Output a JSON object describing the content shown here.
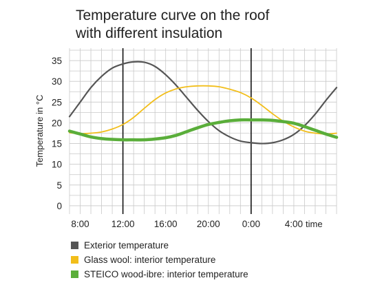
{
  "chart_data": {
    "type": "line",
    "title_lines": [
      "Temperature curve on the roof",
      "with different insulation"
    ],
    "xlabel": "time",
    "ylabel": "Temperature in °C",
    "x_tick_labels": [
      {
        "hour": 8,
        "label": "8:00"
      },
      {
        "hour": 12,
        "label": "12:00"
      },
      {
        "hour": 16,
        "label": "16:00"
      },
      {
        "hour": 20,
        "label": "20:00"
      },
      {
        "hour": 24,
        "label": "0:00"
      },
      {
        "hour": 28,
        "label": "4:00"
      }
    ],
    "xlim": [
      7,
      32
    ],
    "y_ticks": [
      0,
      5,
      10,
      15,
      20,
      25,
      30,
      35
    ],
    "ylim": [
      -2,
      38
    ],
    "grid": true,
    "grid_x_step_hours": 1,
    "grid_y_step": 2.5,
    "marker_lines_hours": [
      12,
      24
    ],
    "legend_position": "bottom",
    "series": [
      {
        "name": "Exterior temperature",
        "color": "#555555",
        "x": [
          7,
          8,
          9,
          10,
          11,
          12,
          13,
          14,
          15,
          16,
          17,
          18,
          19,
          20,
          21,
          22,
          23,
          24,
          25,
          26,
          27,
          28,
          29,
          30,
          31,
          32
        ],
        "y": [
          21.5,
          25,
          28.5,
          31.2,
          33.2,
          34.2,
          34.7,
          34.6,
          33.6,
          31.6,
          29,
          26,
          23,
          20.3,
          18.1,
          16.6,
          15.6,
          15.2,
          15.0,
          15.2,
          15.9,
          17.2,
          19.3,
          22.1,
          25.4,
          28.5
        ]
      },
      {
        "name": "Glass wool: interior temperature",
        "color": "#f2be1a",
        "x": [
          7,
          8,
          9,
          10,
          11,
          12,
          13,
          14,
          15,
          16,
          17,
          18,
          19,
          20,
          21,
          22,
          23,
          24,
          25,
          26,
          27,
          28,
          29,
          30,
          31,
          32
        ],
        "y": [
          17.6,
          17.4,
          17.5,
          17.8,
          18.5,
          19.6,
          21.3,
          23.5,
          25.6,
          27.2,
          28.2,
          28.7,
          28.9,
          28.9,
          28.7,
          28.1,
          27.3,
          26.0,
          24.2,
          22.2,
          20.4,
          19.0,
          18.0,
          17.5,
          17.3,
          17.5
        ]
      },
      {
        "name": "STEICO wood-ibre: interior temperature",
        "color": "#5aae3a",
        "x": [
          7,
          8,
          9,
          10,
          11,
          12,
          13,
          14,
          15,
          16,
          17,
          18,
          19,
          20,
          21,
          22,
          23,
          24,
          25,
          26,
          27,
          28,
          29,
          30,
          31,
          32
        ],
        "y": [
          18.0,
          17.3,
          16.6,
          16.2,
          16.0,
          15.9,
          15.9,
          15.9,
          16.1,
          16.4,
          17.0,
          17.9,
          18.8,
          19.6,
          20.1,
          20.5,
          20.7,
          20.7,
          20.7,
          20.6,
          20.3,
          19.9,
          19.1,
          18.2,
          17.3,
          16.5
        ]
      }
    ]
  }
}
